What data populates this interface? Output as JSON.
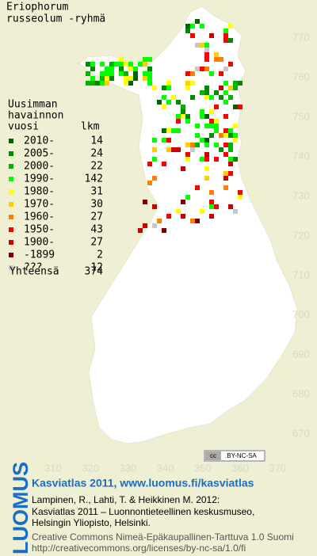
{
  "title": [
    "Eriophorum",
    "russeolum -ryhmä"
  ],
  "legend": {
    "heading": [
      "Uusimman",
      "havainnon"
    ],
    "col_year": "vuosi",
    "col_count": "lkm",
    "entries": [
      {
        "label": "2010-",
        "count": 14,
        "color": "#006400"
      },
      {
        "label": "2005-",
        "count": 24,
        "color": "#008c00"
      },
      {
        "label": "2000-",
        "count": 22,
        "color": "#00b400"
      },
      {
        "label": "1990-",
        "count": 142,
        "color": "#00ff00"
      },
      {
        "label": "1980-",
        "count": 31,
        "color": "#ffff00"
      },
      {
        "label": "1970-",
        "count": 30,
        "color": "#ffcc00"
      },
      {
        "label": "1960-",
        "count": 27,
        "color": "#ff8000"
      },
      {
        "label": "1950-",
        "count": 43,
        "color": "#ff0000"
      },
      {
        "label": "1900-",
        "count": 27,
        "color": "#cc0000"
      },
      {
        "label": "-1899",
        "count": 2,
        "color": "#800000"
      },
      {
        "label": "???",
        "count": 12,
        "color": "#c8c8c8"
      }
    ],
    "total_label": "Yhteensä",
    "total": 374
  },
  "map": {
    "y_ticks": [
      770,
      760,
      750,
      740,
      730,
      720,
      710,
      700,
      690,
      680,
      670
    ],
    "x_ticks": [
      310,
      320,
      330,
      340,
      350,
      360,
      370
    ]
  },
  "license_badge": [
    "cc",
    "BY-NC-SA"
  ],
  "footer": {
    "logo": "LUOMUS",
    "headline": "Kasviatlas 2011, www.luomus.fi/kasviatlas",
    "citation": [
      "Lampinen, R., Lahti, T. & Heikkinen M. 2012:",
      "Kasviatlas 2011 – Luonnontieteellinen keskusmuseo,",
      "Helsingin Yliopisto, Helsinki."
    ],
    "license": [
      "Creative Commons Nimeä-Epäkaupallinen-Tarttuva 1.0 Suomi",
      "http://creativecommons.org/licenses/by-nc-sa/1.0/fi"
    ]
  }
}
